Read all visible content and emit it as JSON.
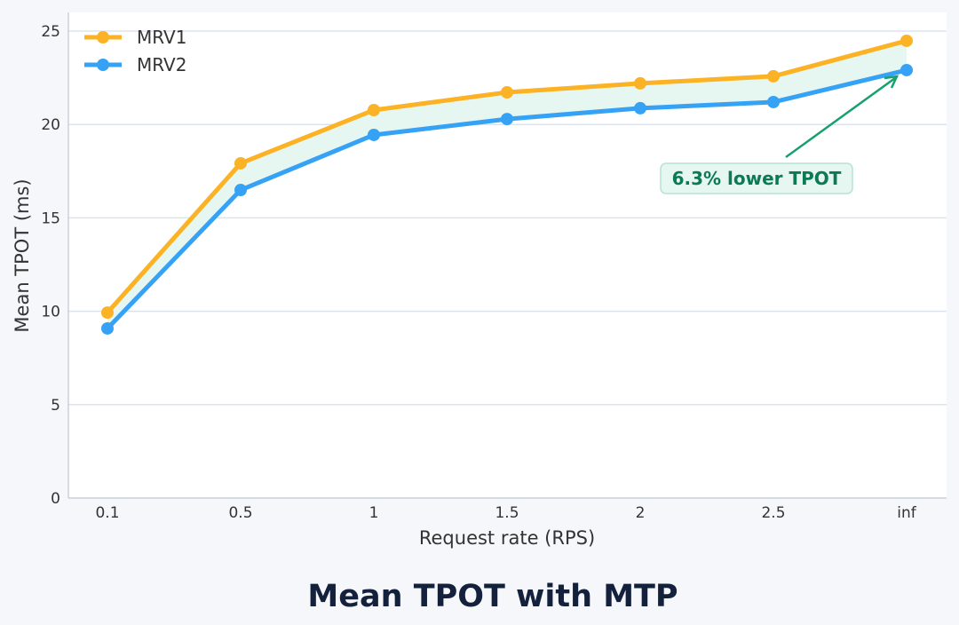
{
  "chart_data": {
    "type": "line",
    "title": "Mean TPOT with MTP",
    "xlabel": "Request rate (RPS)",
    "ylabel": "Mean TPOT (ms)",
    "categories": [
      "0.1",
      "0.5",
      "1",
      "1.5",
      "2",
      "2.5",
      "inf"
    ],
    "ylim": [
      0,
      26
    ],
    "yticks": [
      0,
      5,
      10,
      15,
      20,
      25
    ],
    "grid": "horizontal",
    "legend": "top-left",
    "series": [
      {
        "name": "MRV1",
        "color": "#fbb224",
        "values": [
          9.93,
          17.92,
          20.77,
          21.72,
          22.2,
          22.58,
          24.48
        ]
      },
      {
        "name": "MRV2",
        "color": "#36a2f5",
        "values": [
          9.08,
          16.49,
          19.44,
          20.29,
          20.87,
          21.2,
          22.91
        ]
      }
    ],
    "fill_between_color": "#e6f6f0",
    "annotation": {
      "text": "6.3% lower TPOT",
      "color": "#0b7a55",
      "points_to": "inf"
    }
  }
}
